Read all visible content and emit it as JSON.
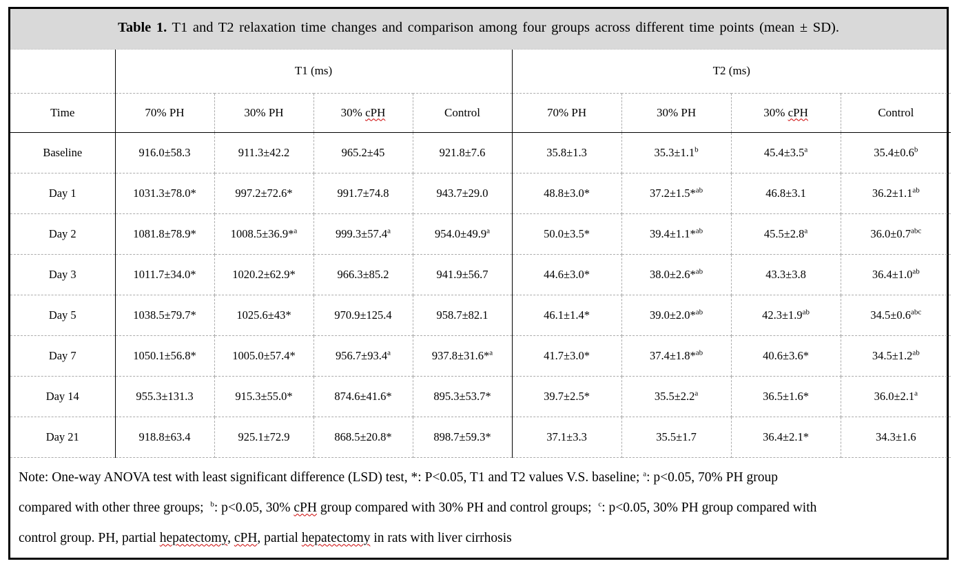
{
  "title": {
    "label": "Table 1.",
    "text": " T1 and T2 relaxation time changes and comparison among four groups across different time points (mean ± SD)."
  },
  "table": {
    "group_headers": [
      "T1 (ms)",
      "T2 (ms)"
    ],
    "time_header": "Time",
    "column_headers": [
      "70% PH",
      "30% PH",
      "30% ~{cPH}",
      "Control",
      "70% PH",
      "30% PH",
      "30% ~{cPH}",
      "Control"
    ],
    "rows": [
      {
        "time": "Baseline",
        "values": [
          "916.0±58.3",
          "911.3±42.2",
          "965.2±45",
          "921.8±7.6",
          "35.8±1.3",
          "35.3±1.1^{b}",
          "45.4±3.5^{a}",
          "35.4±0.6^{b}"
        ]
      },
      {
        "time": "Day 1",
        "values": [
          "1031.3±78.0*",
          "997.2±72.6*",
          "991.7±74.8",
          "943.7±29.0",
          "48.8±3.0*",
          "37.2±1.5*^{ab}",
          "46.8±3.1",
          "36.2±1.1^{ab}"
        ]
      },
      {
        "time": "Day 2",
        "values": [
          "1081.8±78.9*",
          "1008.5±36.9*^{a}",
          "999.3±57.4^{a}",
          "954.0±49.9^{a}",
          "50.0±3.5*",
          "39.4±1.1*^{ab}",
          "45.5±2.8^{a}",
          "36.0±0.7^{abc}"
        ]
      },
      {
        "time": "Day 3",
        "values": [
          "1011.7±34.0*",
          "1020.2±62.9*",
          "966.3±85.2",
          "941.9±56.7",
          "44.6±3.0*",
          "38.0±2.6*^{ab}",
          "43.3±3.8",
          "36.4±1.0^{ab}"
        ]
      },
      {
        "time": "Day 5",
        "values": [
          "1038.5±79.7*",
          "1025.6±43*",
          "970.9±125.4",
          "958.7±82.1",
          "46.1±1.4*",
          "39.0±2.0*^{ab}",
          "42.3±1.9^{ab}",
          "34.5±0.6^{abc}"
        ]
      },
      {
        "time": "Day 7",
        "values": [
          "1050.1±56.8*",
          "1005.0±57.4*",
          "956.7±93.4^{a}",
          "937.8±31.6*^{a}",
          "41.7±3.0*",
          "37.4±1.8*^{ab}",
          "40.6±3.6*",
          "34.5±1.2^{ab}"
        ]
      },
      {
        "time": "Day 14",
        "values": [
          "955.3±131.3",
          "915.3±55.0*",
          "874.6±41.6*",
          "895.3±53.7*",
          "39.7±2.5*",
          "35.5±2.2^{a}",
          "36.5±1.6*",
          "36.0±2.1^{a}"
        ]
      },
      {
        "time": "Day 21",
        "values": [
          "918.8±63.4",
          "925.1±72.9",
          "868.5±20.8*",
          "898.7±59.3*",
          "37.1±3.3",
          "35.5±1.7",
          "36.4±2.1*",
          "34.3±1.6"
        ]
      }
    ]
  },
  "note": {
    "lines": [
      "Note: One-way ANOVA test with least significant difference (LSD) test, *: P<0.05, T1 and T2 values V.S. baseline; ^{a}: p<0.05, 70% PH group",
      "compared with other three groups;  ^{b}: p<0.05, 30% ~{cPH} group compared with 30% PH and control groups;  ^{c}: p<0.05, 30% PH group compared with",
      "control group. PH, partial ~{hepatectomy}, ~{cPH}, partial ~{hepatectomy} in rats with liver cirrhosis"
    ]
  },
  "colors": {
    "title_bg": "#d9d9d9",
    "border": "#000000",
    "dashed_line": "#ababab",
    "spellcheck_underline": "#cc0000"
  }
}
